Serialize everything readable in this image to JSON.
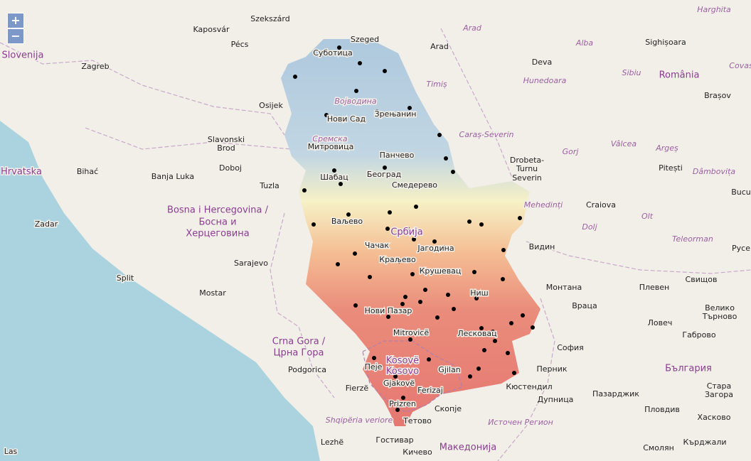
{
  "controls": {
    "zoom_in": "+",
    "zoom_out": "−"
  },
  "countries": [
    "Slovenija",
    "Hrvatska",
    "Bosna i Hercegovina /",
    "Босна и",
    "Херцеговина",
    "Crna Gora /",
    "Црна Гора",
    "România",
    "България",
    "Македонија",
    "Србија",
    "Kosovë",
    "Kosovo"
  ],
  "regions": [
    "Harghita",
    "Arad",
    "Alba",
    "Sibiu",
    "Timiș",
    "Hunedoara",
    "Caraș-Severin",
    "Gorj",
    "Vâlcea",
    "Argeș",
    "Dâmbovița",
    "Mehedinți",
    "Olt",
    "Dolj",
    "Teleorman",
    "Војводина",
    "Сремска",
    "Shqipëria veriore",
    "Источен Регион",
    "Covas"
  ],
  "cities": [
    "Szekszárd",
    "Kaposvár",
    "Szeged",
    "Pécs",
    "Zagreb",
    "Arad",
    "Deva",
    "Sighișoara",
    "Brașov",
    "Osijek",
    "Суботица",
    "Нови Сад",
    "Зрењанин",
    "Slavonski",
    "Brod",
    "Митровица",
    "Панчево",
    "Београд",
    "Шабац",
    "Смедерево",
    "Drobeta-",
    "Turnu",
    "Severin",
    "Pitești",
    "Bihać",
    "Banja Luka",
    "Doboj",
    "Tuzla",
    "Craiova",
    "Bucu",
    "Zadar",
    "Ваљево",
    "Чачак",
    "Краљево",
    "Јагодина",
    "Видин",
    "Русе",
    "Sarajevo",
    "Split",
    "Крушевац",
    "Свищов",
    "Mostar",
    "Монтана",
    "Плевен",
    "Ниш",
    "Нови Пазар",
    "Враца",
    "Велико",
    "Търново",
    "Ловеч",
    "Mitrovicë",
    "Лесковац",
    "Габрово",
    "Пеје",
    "София",
    "Gjilan",
    "Перник",
    "Podgorica",
    "Кюстендил",
    "Стара",
    "Загора",
    "Gjakovë",
    "Fierzë",
    "Ferizaj",
    "Пазарджик",
    "Дупница",
    "Пловдив",
    "Prizren",
    "Скопје",
    "Хасково",
    "Тетово",
    "Lezhë",
    "Гостивар",
    "Смолян",
    "Кърджали",
    "Кичево",
    "Las"
  ]
}
